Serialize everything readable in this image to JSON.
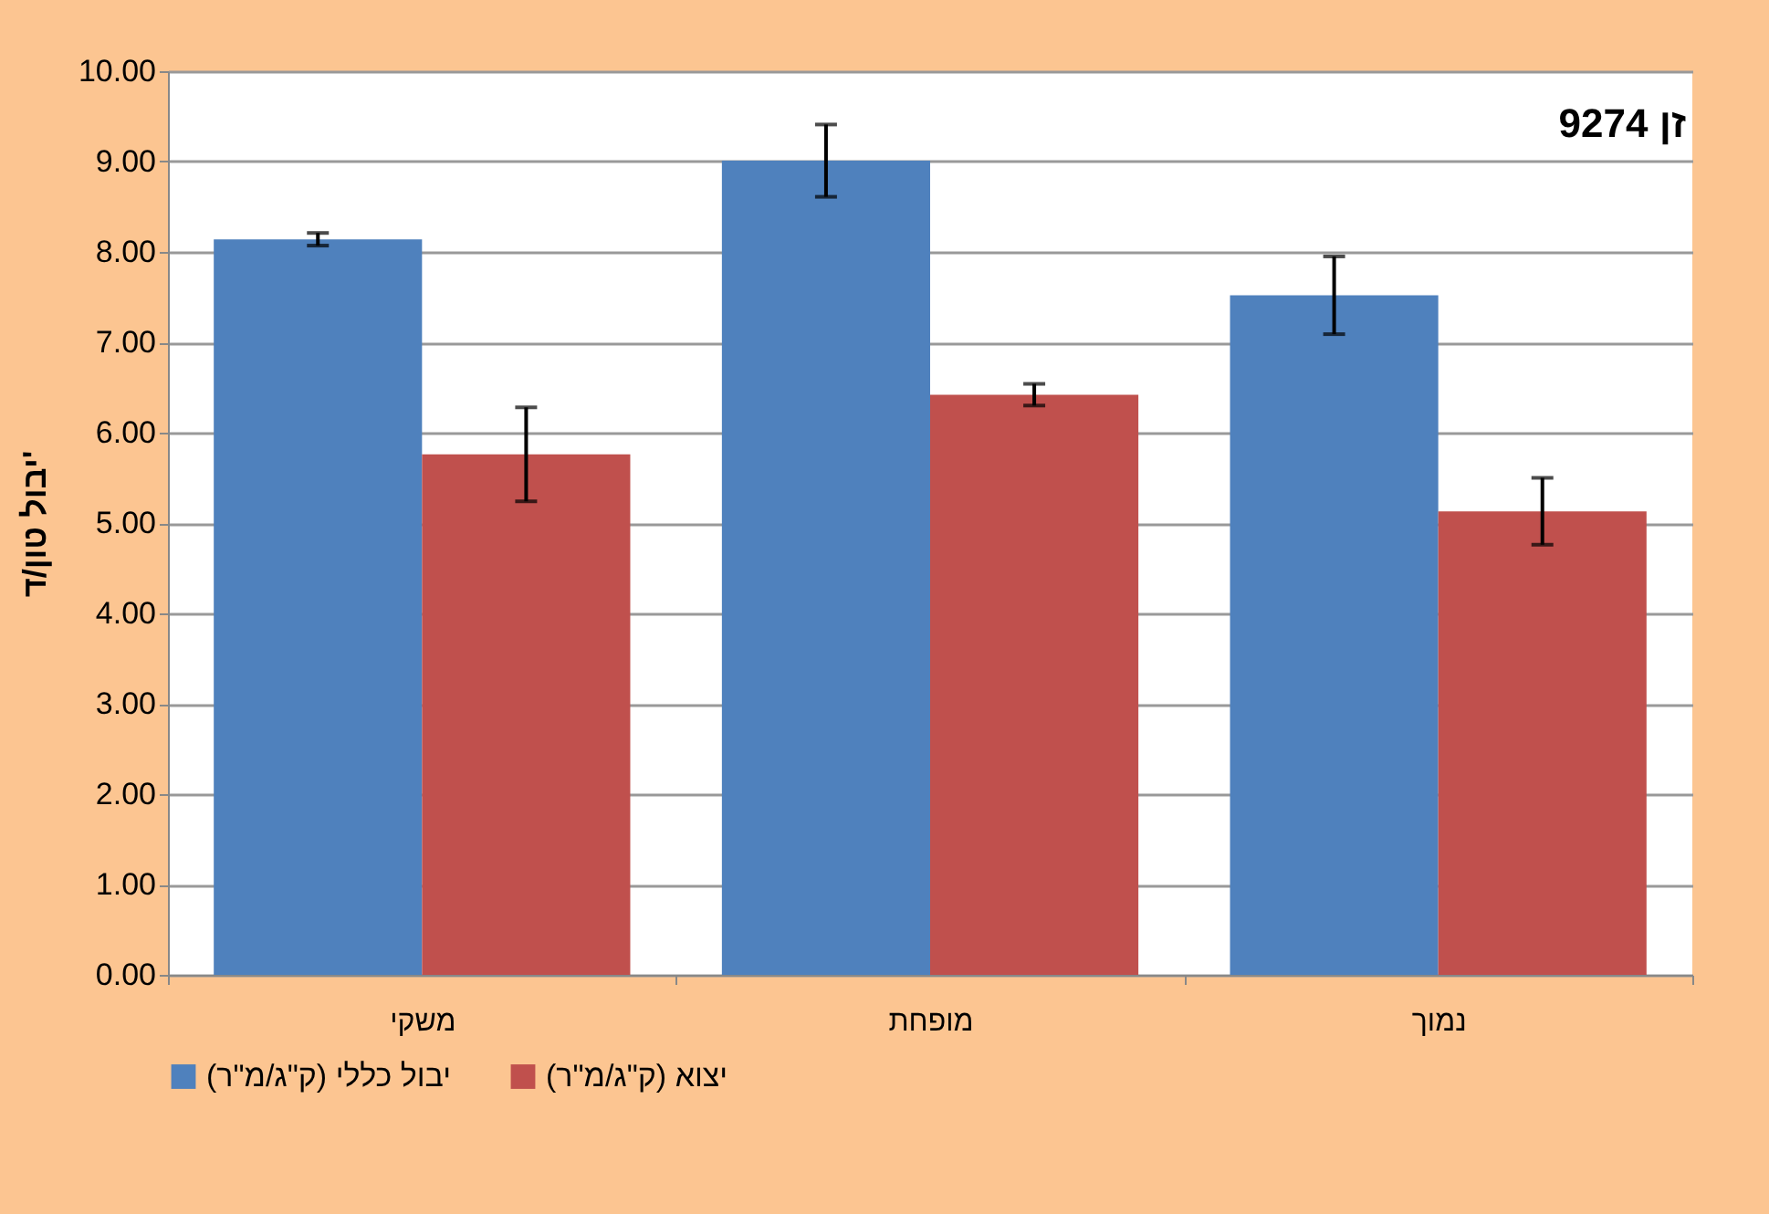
{
  "chart_data": {
    "type": "bar",
    "title": "זן 9274",
    "ylabel": "יבול טון/ד'",
    "categories": [
      "משקי",
      "מופחת",
      "נמוך"
    ],
    "series": [
      {
        "name": "יבול כללי (ק\"ג/מ\"ר)",
        "color": "#4f81bd",
        "values": [
          8.14,
          9.01,
          7.52
        ],
        "errors": [
          0.07,
          0.4,
          0.43
        ]
      },
      {
        "name": "יצוא (ק\"ג/מ\"ר)",
        "color": "#c0504d",
        "values": [
          5.76,
          6.42,
          5.13
        ],
        "errors": [
          0.52,
          0.12,
          0.37
        ]
      }
    ],
    "ylim": [
      0,
      10
    ],
    "yticks": [
      {
        "value": 0,
        "label": "0.00"
      },
      {
        "value": 1,
        "label": "1.00"
      },
      {
        "value": 2,
        "label": "2.00"
      },
      {
        "value": 3,
        "label": "3.00"
      },
      {
        "value": 4,
        "label": "4.00"
      },
      {
        "value": 5,
        "label": "5.00"
      },
      {
        "value": 6,
        "label": "6.00"
      },
      {
        "value": 7,
        "label": "7.00"
      },
      {
        "value": 8,
        "label": "8.00"
      },
      {
        "value": 9,
        "label": "9.00"
      },
      {
        "value": 10,
        "label": "10.00"
      }
    ],
    "grid": "y",
    "legend": "bottom"
  }
}
